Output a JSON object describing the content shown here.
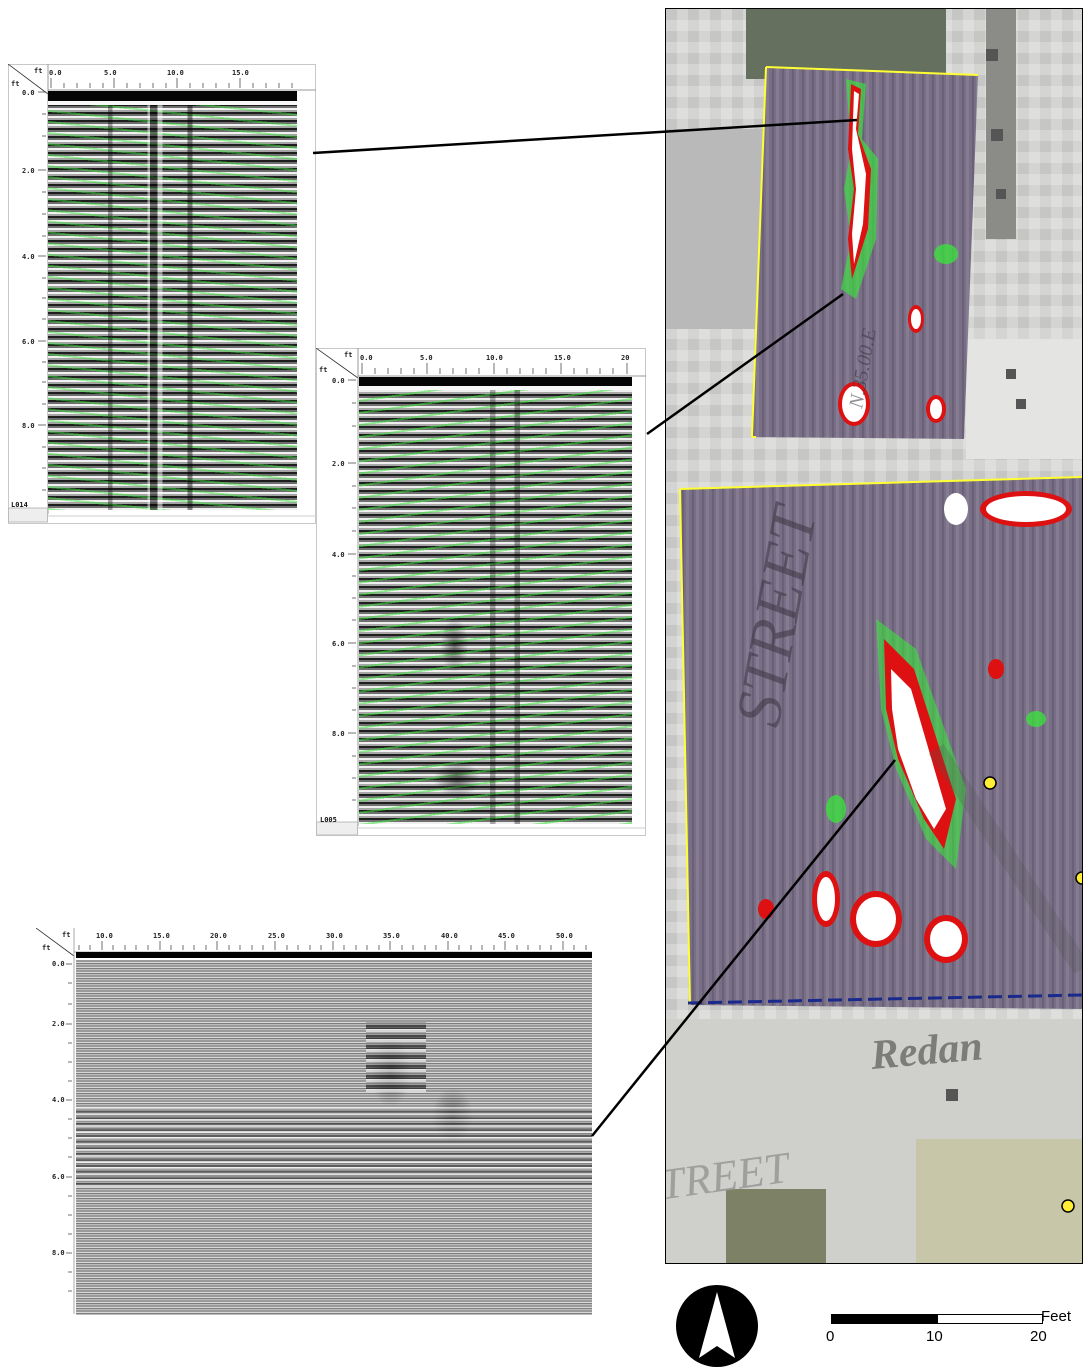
{
  "profiles": [
    {
      "id": "L014",
      "unit": "ft",
      "x_ticks": [
        "0.0",
        "5.0",
        "10.0",
        "15.0"
      ],
      "depth_ticks": [
        "0.0",
        "2.0",
        "4.0",
        "6.0",
        "8.0"
      ]
    },
    {
      "id": "L005",
      "unit": "ft",
      "x_ticks": [
        "0.0",
        "5.0",
        "10.0",
        "15.0",
        "20"
      ],
      "depth_ticks": [
        "0.0",
        "2.0",
        "4.0",
        "6.0",
        "8.0"
      ]
    },
    {
      "id": "",
      "unit": "ft",
      "x_ticks": [
        "10.0",
        "15.0",
        "20.0",
        "25.0",
        "30.0",
        "35.0",
        "40.0",
        "45.0",
        "50.0"
      ],
      "depth_ticks": [
        "0.0",
        "2.0",
        "4.0",
        "6.0",
        "8.0"
      ]
    }
  ],
  "map": {
    "street_label_1": "STREET",
    "street_label_2": "Redan",
    "street_label_3": "TREET",
    "annotation_1": "N.35.00.E",
    "colors": {
      "survey_boundary": "#ffff33",
      "dashed_line": "#1a2a8c",
      "marker": "#ffee33",
      "anomaly_white": "#ffffff",
      "anomaly_red": "#dd1111",
      "anomaly_green": "#33ee33"
    }
  },
  "scale_bar": {
    "unit_label": "Feet",
    "labels": [
      "0",
      "10",
      "20"
    ]
  },
  "north_arrow": {
    "icon": "north-arrow-icon"
  }
}
